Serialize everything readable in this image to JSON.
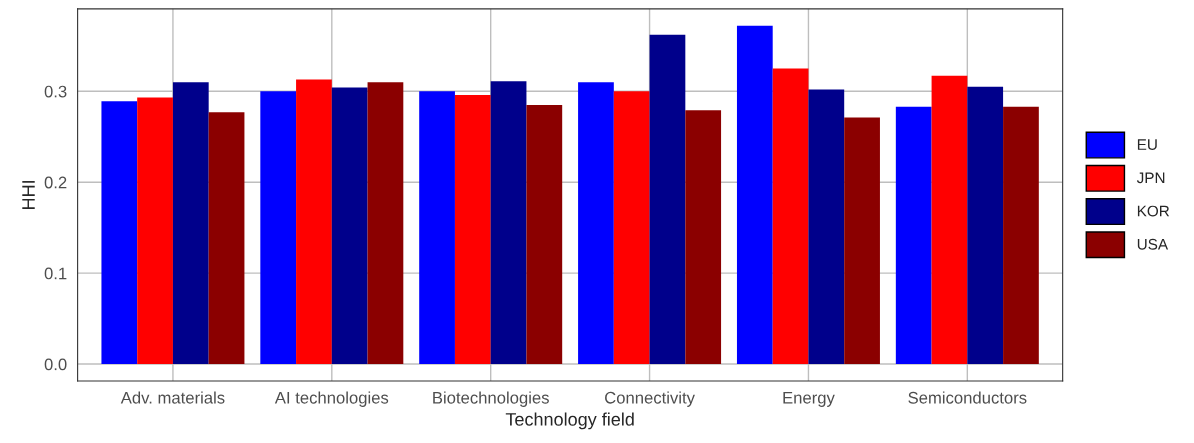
{
  "chart_data": {
    "type": "bar",
    "xlabel": "Technology field",
    "ylabel": "HHI",
    "categories": [
      "Adv. materials",
      "AI technologies",
      "Biotechnologies",
      "Connectivity",
      "Energy",
      "Semiconductors"
    ],
    "series": [
      {
        "name": "EU",
        "color": "#0000ff",
        "values": [
          0.289,
          0.3,
          0.3,
          0.31,
          0.372,
          0.283
        ]
      },
      {
        "name": "JPN",
        "color": "#ff0000",
        "values": [
          0.293,
          0.313,
          0.296,
          0.3,
          0.325,
          0.317
        ]
      },
      {
        "name": "KOR",
        "color": "#00008b",
        "values": [
          0.31,
          0.304,
          0.311,
          0.362,
          0.302,
          0.305
        ]
      },
      {
        "name": "USA",
        "color": "#8b0000",
        "values": [
          0.277,
          0.31,
          0.285,
          0.279,
          0.271,
          0.283
        ]
      }
    ],
    "ylim": [
      -0.0186,
      0.3906
    ],
    "yticks": [
      {
        "value": 0,
        "label": "0.0"
      },
      0.1,
      0.2,
      0.3
    ],
    "grid": true,
    "legend": "right"
  }
}
